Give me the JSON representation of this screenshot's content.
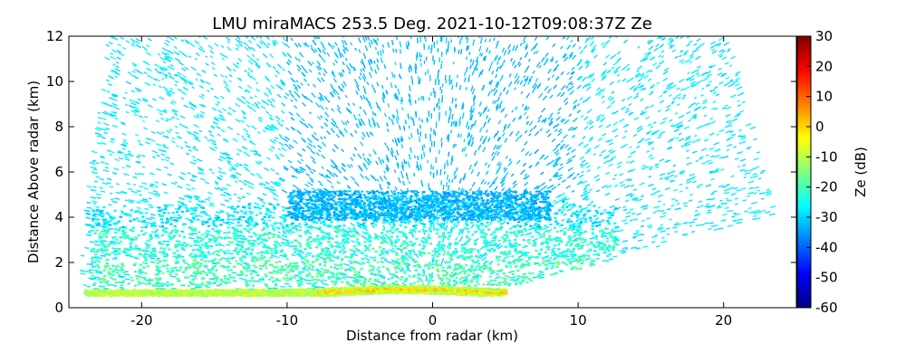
{
  "chart_data": {
    "type": "heatmap",
    "title": "LMU miraMACS 253.5 Deg. 2021-10-12T09:08:37Z  Ze",
    "xlabel": "Distance from radar (km)",
    "ylabel": "Distance Above radar  (km)",
    "xlim": [
      -25,
      25
    ],
    "ylim": [
      0,
      12
    ],
    "x_ticks": [
      -20,
      -10,
      0,
      10,
      20
    ],
    "y_ticks": [
      0,
      2,
      4,
      6,
      8,
      10,
      12
    ],
    "colorbar": {
      "label": "Ze (dB)",
      "range": [
        -60,
        30
      ],
      "ticks": [
        30,
        20,
        10,
        0,
        -10,
        -20,
        -30,
        -40,
        -50,
        -60
      ],
      "colormap": "jet"
    },
    "scan_sector": {
      "left_edge": [
        [
          -24.3,
          0.6
        ],
        [
          -22.2,
          12.0
        ]
      ],
      "right_edge": [
        [
          23.4,
          4.1
        ],
        [
          20.2,
          12.0
        ]
      ],
      "lower_right_edge": [
        [
          0,
          0
        ],
        [
          23.4,
          4.1
        ]
      ]
    },
    "layers": [
      {
        "name": "clutter-band",
        "x": [
          -24,
          5
        ],
        "y": [
          0.6,
          1.0
        ],
        "ze": -8
      },
      {
        "name": "dense-cloud",
        "x": [
          -23,
          12
        ],
        "y": [
          1.0,
          5.0
        ],
        "ze": -25
      },
      {
        "name": "cloud-top",
        "x": [
          -10,
          10
        ],
        "y": [
          4.0,
          5.2
        ],
        "ze": -35
      },
      {
        "name": "sparse-noise",
        "x": [
          -22,
          23
        ],
        "y": [
          1.0,
          12
        ],
        "ze": -28
      }
    ]
  }
}
